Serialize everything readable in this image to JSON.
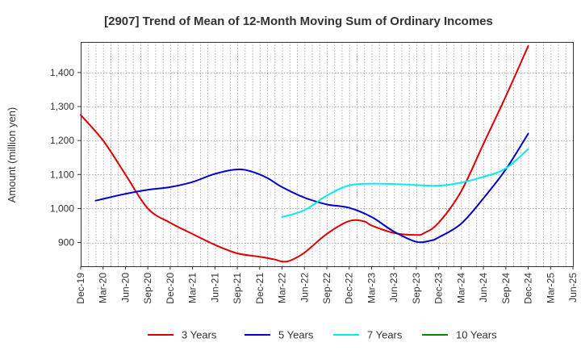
{
  "chart_data": {
    "type": "line",
    "title": "[2907]  Trend of Mean of 12-Month Moving Sum of Ordinary Incomes",
    "xlabel": "",
    "ylabel": "Amount (million yen)",
    "ylim": [
      830,
      1490
    ],
    "yticks": [
      900,
      1000,
      1100,
      1200,
      1300,
      1400
    ],
    "ytick_labels": [
      "900",
      "1,000",
      "1,100",
      "1,200",
      "1,300",
      "1,400"
    ],
    "xlim": [
      0,
      66
    ],
    "xticks": [
      {
        "label": "Dec-19",
        "x": 0
      },
      {
        "label": "Mar-20",
        "x": 3
      },
      {
        "label": "Jun-20",
        "x": 6
      },
      {
        "label": "Sep-20",
        "x": 9
      },
      {
        "label": "Dec-20",
        "x": 12
      },
      {
        "label": "Mar-21",
        "x": 15
      },
      {
        "label": "Jun-21",
        "x": 18
      },
      {
        "label": "Sep-21",
        "x": 21
      },
      {
        "label": "Dec-21",
        "x": 24
      },
      {
        "label": "Mar-22",
        "x": 27
      },
      {
        "label": "Jun-22",
        "x": 30
      },
      {
        "label": "Sep-22",
        "x": 33
      },
      {
        "label": "Dec-22",
        "x": 36
      },
      {
        "label": "Mar-23",
        "x": 39
      },
      {
        "label": "Jun-23",
        "x": 42
      },
      {
        "label": "Sep-23",
        "x": 45
      },
      {
        "label": "Dec-23",
        "x": 48
      },
      {
        "label": "Mar-24",
        "x": 51
      },
      {
        "label": "Jun-24",
        "x": 54
      },
      {
        "label": "Sep-24",
        "x": 57
      },
      {
        "label": "Dec-24",
        "x": 60
      },
      {
        "label": "Mar-25",
        "x": 63
      },
      {
        "label": "Jun-25",
        "x": 66
      }
    ],
    "grid": true,
    "legend_position": "bottom",
    "series": [
      {
        "name": "3 Years",
        "color": "#dd0000",
        "x": [
          0,
          3,
          6,
          9,
          12,
          15,
          18,
          21,
          24,
          26,
          27,
          28,
          30,
          33,
          36,
          38,
          39,
          42,
          45,
          46,
          48,
          51,
          54,
          57,
          60
        ],
        "y": [
          1275,
          1200,
          1100,
          1000,
          958,
          925,
          893,
          868,
          858,
          850,
          844,
          846,
          870,
          925,
          963,
          962,
          950,
          928,
          922,
          927,
          958,
          1050,
          1190,
          1330,
          1478
        ]
      },
      {
        "name": "5 Years",
        "color": "#0000cc",
        "x": [
          2,
          6,
          9,
          12,
          15,
          18,
          21,
          23,
          25,
          27,
          30,
          33,
          36,
          39,
          42,
          45,
          47,
          48,
          51,
          54,
          57,
          60
        ],
        "y": [
          1023,
          1043,
          1055,
          1063,
          1078,
          1102,
          1115,
          1108,
          1090,
          1063,
          1032,
          1012,
          1002,
          975,
          932,
          902,
          906,
          915,
          955,
          1030,
          1115,
          1220
        ]
      },
      {
        "name": "7 Years",
        "color": "#00eeee",
        "x": [
          27,
          30,
          33,
          36,
          39,
          42,
          45,
          48,
          51,
          54,
          57,
          60
        ],
        "y": [
          975,
          995,
          1038,
          1068,
          1073,
          1072,
          1069,
          1067,
          1076,
          1093,
          1118,
          1175
        ]
      },
      {
        "name": "10 Years",
        "color": "#008800",
        "x": [],
        "y": []
      }
    ]
  }
}
